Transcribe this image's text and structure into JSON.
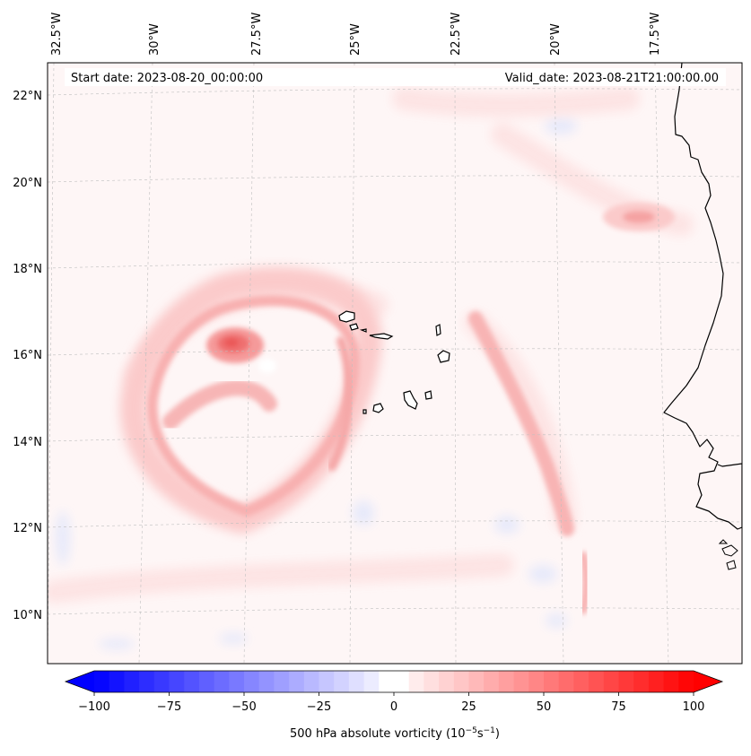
{
  "header": {
    "start_date": "Start date: 2023-08-20_00:00:00",
    "valid_date": "Valid_date: 2023-08-21T21:00:00.00"
  },
  "map": {
    "longitude_labels": [
      "32.5°W",
      "30°W",
      "27.5°W",
      "25°W",
      "22.5°W",
      "20°W",
      "17.5°W"
    ],
    "latitude_labels": [
      "22°N",
      "20°N",
      "18°N",
      "16°N",
      "14°N",
      "12°N",
      "10°N"
    ],
    "field": "500 hPa absolute vorticity",
    "islands": [
      "Santo Antão",
      "São Vicente",
      "Santa Luzia",
      "São Nicolau",
      "Sal",
      "Boa Vista",
      "Maio",
      "Santiago",
      "Fogo",
      "Brava"
    ]
  },
  "colorbar": {
    "min": -100,
    "max": 100,
    "tick_labels": [
      "−100",
      "−75",
      "−50",
      "−25",
      "0",
      "25",
      "50",
      "75",
      "100"
    ],
    "label_main": "500 hPa absolute vorticity (10",
    "label_exp1": "−5",
    "label_mid": "s",
    "label_exp2": "−1",
    "label_end": ")",
    "colors": {
      "negative": "#0000ff",
      "zero": "#ffffff",
      "positive": "#ff0000"
    }
  }
}
